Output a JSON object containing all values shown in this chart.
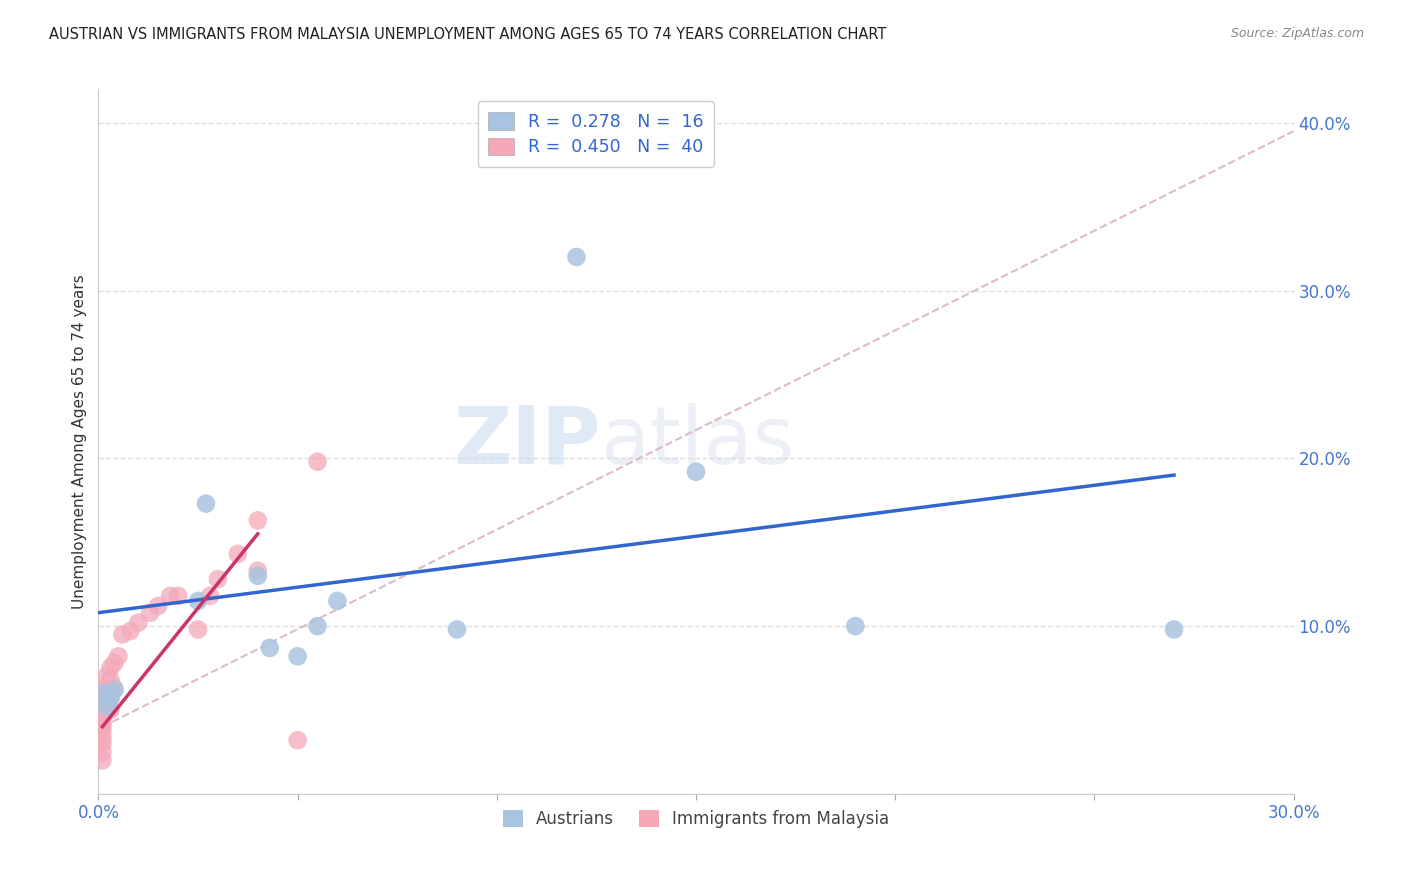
{
  "title": "AUSTRIAN VS IMMIGRANTS FROM MALAYSIA UNEMPLOYMENT AMONG AGES 65 TO 74 YEARS CORRELATION CHART",
  "source": "Source: ZipAtlas.com",
  "ylabel": "Unemployment Among Ages 65 to 74 years",
  "xlim": [
    0.0,
    0.3
  ],
  "ylim": [
    0.0,
    0.42
  ],
  "xticks": [
    0.0,
    0.05,
    0.1,
    0.15,
    0.2,
    0.25,
    0.3
  ],
  "yticks": [
    0.0,
    0.1,
    0.2,
    0.3,
    0.4
  ],
  "xticklabels": [
    "0.0%",
    "",
    "",
    "",
    "",
    "",
    "30.0%"
  ],
  "yticklabels": [
    "",
    "10.0%",
    "20.0%",
    "30.0%",
    "40.0%"
  ],
  "watermark_zip": "ZIP",
  "watermark_atlas": "atlas",
  "legend_r1": "R = ",
  "legend_v1": "0.278",
  "legend_n1": "N = ",
  "legend_v1n": "16",
  "legend_r2": "R = ",
  "legend_v2": "0.450",
  "legend_n2": "N = ",
  "legend_v2n": "40",
  "austrians_color": "#a8c4e0",
  "malaysia_color": "#f4a8b8",
  "blue_line_color": "#3366cc",
  "pink_line_color": "#cc3366",
  "dashed_line_color": "#ddbbcc",
  "austrians_x": [
    0.001,
    0.002,
    0.003,
    0.004,
    0.025,
    0.027,
    0.04,
    0.043,
    0.05,
    0.055,
    0.06,
    0.09,
    0.15,
    0.19,
    0.12,
    0.27
  ],
  "austrians_y": [
    0.06,
    0.052,
    0.057,
    0.062,
    0.115,
    0.173,
    0.13,
    0.087,
    0.082,
    0.1,
    0.115,
    0.098,
    0.192,
    0.1,
    0.32,
    0.098
  ],
  "malaysia_x": [
    0.001,
    0.001,
    0.001,
    0.001,
    0.001,
    0.001,
    0.001,
    0.001,
    0.001,
    0.001,
    0.001,
    0.001,
    0.001,
    0.002,
    0.002,
    0.002,
    0.002,
    0.003,
    0.003,
    0.003,
    0.003,
    0.003,
    0.004,
    0.004,
    0.005,
    0.006,
    0.008,
    0.01,
    0.013,
    0.015,
    0.018,
    0.02,
    0.025,
    0.028,
    0.03,
    0.035,
    0.04,
    0.04,
    0.05,
    0.055
  ],
  "malaysia_y": [
    0.02,
    0.025,
    0.03,
    0.033,
    0.037,
    0.04,
    0.042,
    0.044,
    0.046,
    0.05,
    0.053,
    0.058,
    0.063,
    0.05,
    0.055,
    0.062,
    0.07,
    0.05,
    0.057,
    0.062,
    0.068,
    0.075,
    0.063,
    0.078,
    0.082,
    0.095,
    0.097,
    0.102,
    0.108,
    0.112,
    0.118,
    0.118,
    0.098,
    0.118,
    0.128,
    0.143,
    0.133,
    0.163,
    0.032,
    0.198
  ],
  "blue_trend_x": [
    0.0,
    0.27
  ],
  "blue_trend_y": [
    0.108,
    0.19
  ],
  "pink_trend_x": [
    0.001,
    0.04
  ],
  "pink_trend_y": [
    0.04,
    0.155
  ],
  "dashed_trend_x": [
    0.001,
    0.3
  ],
  "dashed_trend_y": [
    0.04,
    0.395
  ]
}
